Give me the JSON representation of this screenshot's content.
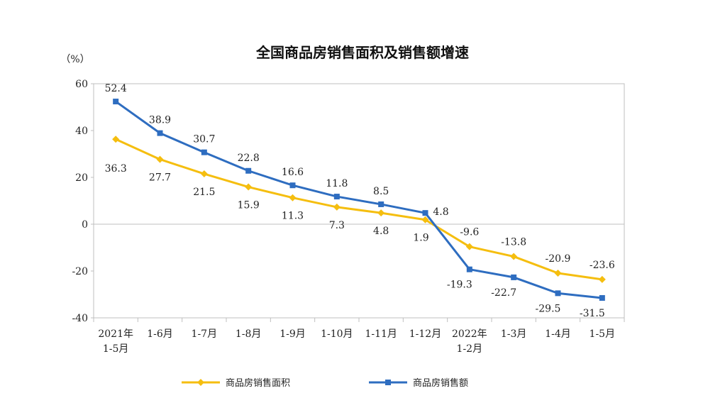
{
  "chart_data": {
    "type": "line",
    "title": "全国商品房销售面积及销售额增速",
    "ylabel": "（%）",
    "ylim": [
      -40,
      60
    ],
    "yticks": [
      60,
      40,
      20,
      0,
      -20,
      -40
    ],
    "categories": [
      [
        "2021年",
        "1-5月"
      ],
      [
        "1-6月"
      ],
      [
        "1-7月"
      ],
      [
        "1-8月"
      ],
      [
        "1-9月"
      ],
      [
        "1-10月"
      ],
      [
        "1-11月"
      ],
      [
        "1-12月"
      ],
      [
        "2022年",
        "1-2月"
      ],
      [
        "1-3月"
      ],
      [
        "1-4月"
      ],
      [
        "1-5月"
      ]
    ],
    "series": [
      {
        "name": "商品房销售面积",
        "color": "#F5BE0F",
        "marker": "diamond",
        "values": [
          36.3,
          27.7,
          21.5,
          15.9,
          11.3,
          7.3,
          4.8,
          1.9,
          -9.6,
          -13.8,
          -20.9,
          -23.6
        ],
        "labels": [
          "36.3",
          "27.7",
          "21.5",
          "15.9",
          "11.3",
          "7.3",
          "4.8",
          "1.9",
          "-9.6",
          "-13.8",
          "-20.9",
          "-23.6"
        ]
      },
      {
        "name": "商品房销售额",
        "color": "#2E6DC0",
        "marker": "square",
        "values": [
          52.4,
          38.9,
          30.7,
          22.8,
          16.6,
          11.8,
          8.5,
          4.8,
          -19.3,
          -22.7,
          -29.5,
          -31.5
        ],
        "labels": [
          "52.4",
          "38.9",
          "30.7",
          "22.8",
          "16.6",
          "11.8",
          "8.5",
          "4.8",
          "-19.3",
          "-22.7",
          "-29.5",
          "-31.5"
        ]
      }
    ],
    "grid": false,
    "legend": "bottom"
  }
}
